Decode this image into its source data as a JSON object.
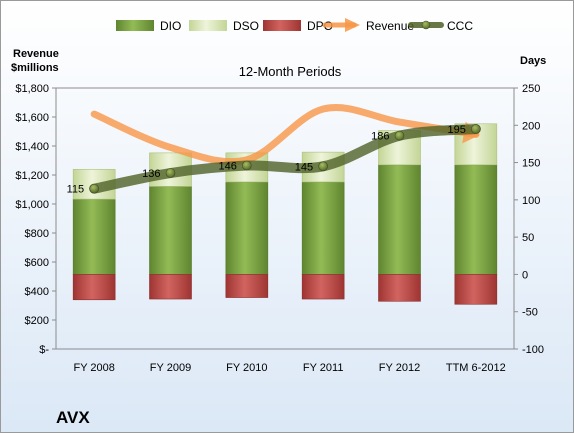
{
  "chart_data": {
    "type": "bar",
    "title": "12-Month Periods",
    "company": "AVX",
    "left_axis_label": [
      "Revenue",
      "$millions"
    ],
    "right_axis_label": "Days",
    "categories": [
      "FY 2008",
      "FY 2009",
      "FY 2010",
      "FY 2011",
      "FY 2012",
      "TTM 6-2012"
    ],
    "left_ylim": [
      0,
      1800
    ],
    "left_ticks": [
      0,
      200,
      400,
      600,
      800,
      1000,
      1200,
      1400,
      1600,
      1800
    ],
    "left_tick_labels": [
      "$-",
      "$200",
      "$400",
      "$600",
      "$800",
      "$1,000",
      "$1,200",
      "$1,400",
      "$1,600",
      "$1,800"
    ],
    "right_ylim": [
      -100,
      250
    ],
    "right_ticks": [
      -100,
      -50,
      0,
      50,
      100,
      150,
      200,
      250
    ],
    "legend": [
      "DIO",
      "DSO",
      "DPO",
      "Revenue",
      "CCC"
    ],
    "legend_position": "top",
    "grid": false,
    "series": [
      {
        "name": "DIO",
        "axis": "days",
        "values": [
          101,
          118,
          124,
          124,
          147,
          147
        ]
      },
      {
        "name": "DSO",
        "axis": "days",
        "values": [
          40,
          45,
          39,
          40,
          46,
          55
        ]
      },
      {
        "name": "DPO",
        "axis": "days",
        "values": [
          -34,
          -33,
          -31,
          -33,
          -36,
          -40
        ]
      },
      {
        "name": "Revenue",
        "axis": "revenue",
        "values": [
          1620,
          1390,
          1305,
          1655,
          1565,
          1480
        ]
      },
      {
        "name": "CCC",
        "axis": "days",
        "values": [
          115,
          136,
          146,
          145,
          186,
          195
        ]
      }
    ],
    "data_labels": [
      "115",
      "136",
      "146",
      "145",
      "186",
      "195"
    ],
    "colors": {
      "DIO": "#7ba23f",
      "DSO": "#d7e4b1",
      "DPO": "#c0504d",
      "Revenue": "#f79646",
      "CCC": "#4f6228"
    }
  }
}
